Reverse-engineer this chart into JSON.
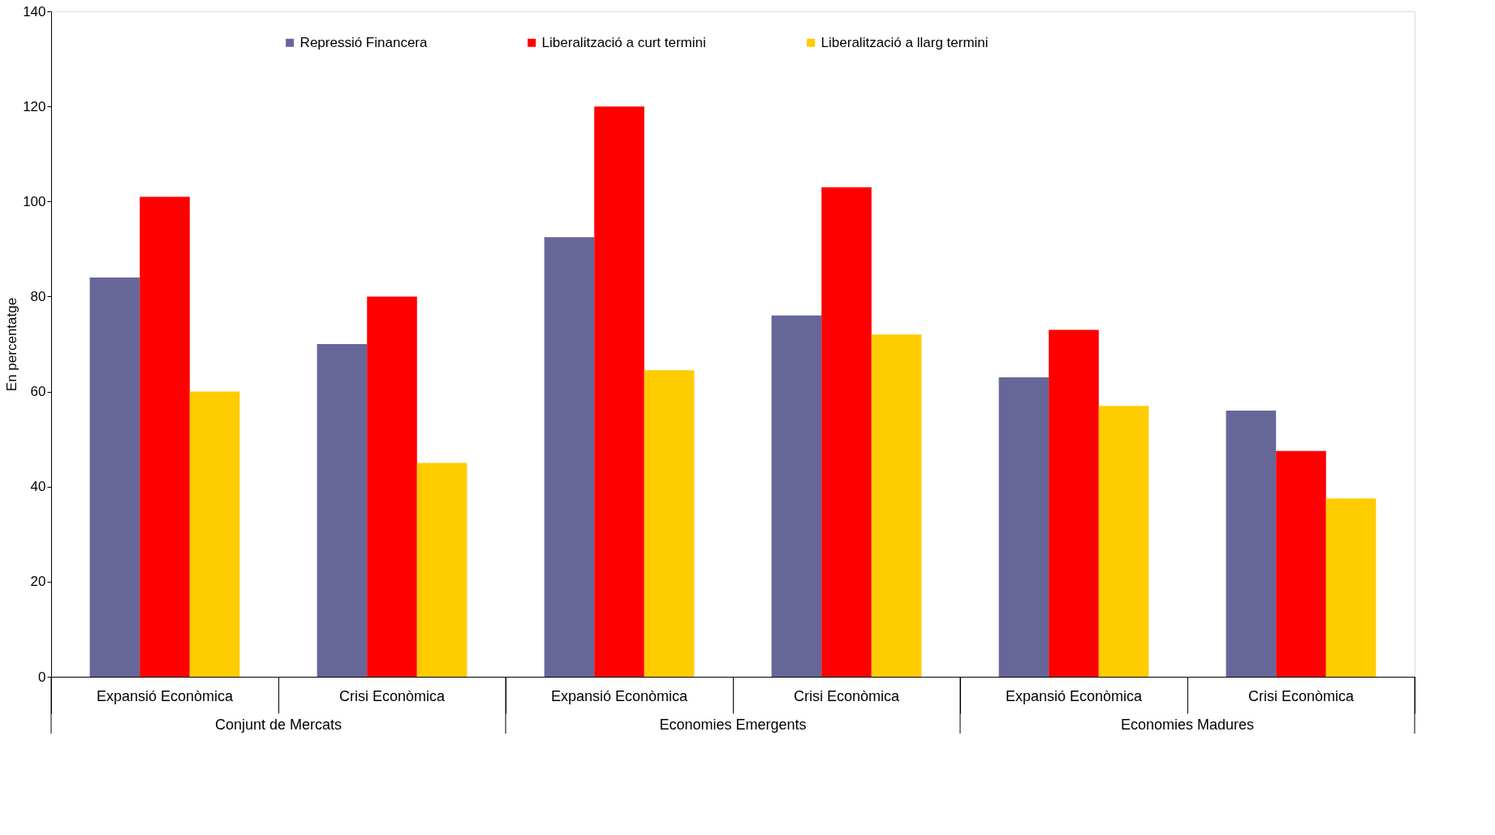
{
  "chart_data": {
    "type": "bar",
    "ylabel": "En percentatge",
    "categories": [
      "Expansió Econòmica",
      "Crisi Econòmica",
      "Expansió Econòmica",
      "Crisi Econòmica",
      "Expansió Econòmica",
      "Crisi Econòmica"
    ],
    "annotations": [
      "Conjunt de Mercats",
      "Economies Emergents",
      "Economies Madures"
    ],
    "series": [
      {
        "name": "Repressió Financera",
        "color": "#666699",
        "values": [
          84,
          70,
          92.5,
          76,
          63,
          56
        ]
      },
      {
        "name": "Liberalització a curt termini",
        "color": "#ff0000",
        "values": [
          101,
          80,
          120,
          103,
          73,
          47.5
        ]
      },
      {
        "name": "Liberalització a llarg termini",
        "color": "#ffcc00",
        "values": [
          60,
          45,
          64.5,
          72,
          57,
          37.5
        ]
      }
    ],
    "ylim": [
      0,
      140
    ],
    "yticks": [
      0,
      20,
      40,
      60,
      80,
      100,
      120,
      140
    ],
    "grid": false,
    "legend": "top"
  }
}
